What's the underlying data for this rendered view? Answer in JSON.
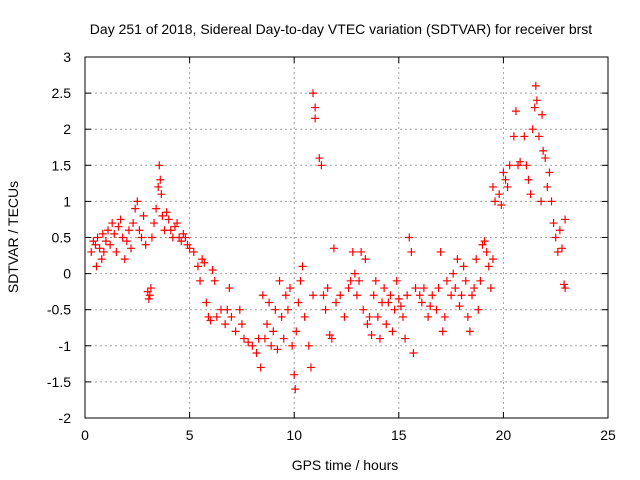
{
  "chart_data": {
    "type": "scatter",
    "title": "Day 251 of 2018, Sidereal Day-to-day VTEC variation (SDTVAR) for receiver brst",
    "xlabel": "GPS time / hours",
    "ylabel": "SDTVAR / TECUs",
    "xlim": [
      0,
      25
    ],
    "ylim": [
      -2,
      3
    ],
    "xticks": [
      0,
      5,
      10,
      15,
      20,
      25
    ],
    "yticks": [
      -2,
      -1.5,
      -1,
      -0.5,
      0,
      0.5,
      1,
      1.5,
      2,
      2.5,
      3
    ],
    "xtick_labels": [
      "0",
      "5",
      "10",
      "15",
      "20",
      "25"
    ],
    "ytick_labels": [
      "-2",
      "-1.5",
      "-1",
      "-0.5",
      "0",
      "0.5",
      "1",
      "1.5",
      "2",
      "2.5",
      "3"
    ],
    "grid": true,
    "marker": "+",
    "series": [
      {
        "name": "SDTVAR",
        "color": "#ff0000",
        "points": [
          [
            0.3,
            0.3
          ],
          [
            0.4,
            0.45
          ],
          [
            0.5,
            0.4
          ],
          [
            0.55,
            0.1
          ],
          [
            0.6,
            0.5
          ],
          [
            0.7,
            0.35
          ],
          [
            0.8,
            0.2
          ],
          [
            0.85,
            0.55
          ],
          [
            0.9,
            0.3
          ],
          [
            1.0,
            0.45
          ],
          [
            1.1,
            0.6
          ],
          [
            1.2,
            0.4
          ],
          [
            1.3,
            0.7
          ],
          [
            1.4,
            0.55
          ],
          [
            1.5,
            0.3
          ],
          [
            1.6,
            0.65
          ],
          [
            1.7,
            0.75
          ],
          [
            1.8,
            0.5
          ],
          [
            1.9,
            0.2
          ],
          [
            2.0,
            0.45
          ],
          [
            2.1,
            0.6
          ],
          [
            2.2,
            0.35
          ],
          [
            2.3,
            0.7
          ],
          [
            2.4,
            0.9
          ],
          [
            2.5,
            1.0
          ],
          [
            2.6,
            0.6
          ],
          [
            2.7,
            0.5
          ],
          [
            2.8,
            0.8
          ],
          [
            2.9,
            0.4
          ],
          [
            3.0,
            -0.25
          ],
          [
            3.05,
            -0.35
          ],
          [
            3.1,
            -0.3
          ],
          [
            3.15,
            -0.2
          ],
          [
            3.2,
            0.5
          ],
          [
            3.3,
            0.7
          ],
          [
            3.4,
            0.9
          ],
          [
            3.5,
            1.2
          ],
          [
            3.55,
            1.5
          ],
          [
            3.6,
            1.3
          ],
          [
            3.65,
            1.1
          ],
          [
            3.7,
            0.8
          ],
          [
            3.8,
            0.6
          ],
          [
            3.9,
            0.85
          ],
          [
            4.0,
            0.75
          ],
          [
            4.1,
            0.6
          ],
          [
            4.2,
            0.5
          ],
          [
            4.3,
            0.65
          ],
          [
            4.4,
            0.7
          ],
          [
            4.5,
            0.5
          ],
          [
            4.6,
            0.45
          ],
          [
            4.7,
            0.55
          ],
          [
            4.8,
            0.5
          ],
          [
            4.9,
            0.4
          ],
          [
            5.0,
            0.35
          ],
          [
            5.2,
            0.3
          ],
          [
            5.4,
            0.1
          ],
          [
            5.5,
            -0.1
          ],
          [
            5.6,
            0.2
          ],
          [
            5.7,
            0.15
          ],
          [
            5.8,
            -0.4
          ],
          [
            5.9,
            -0.6
          ],
          [
            6.0,
            -0.65
          ],
          [
            6.1,
            0.05
          ],
          [
            6.2,
            -0.1
          ],
          [
            6.3,
            -0.6
          ],
          [
            6.5,
            -0.5
          ],
          [
            6.7,
            -0.7
          ],
          [
            6.8,
            -0.5
          ],
          [
            6.9,
            -0.2
          ],
          [
            7.0,
            -0.6
          ],
          [
            7.2,
            -0.8
          ],
          [
            7.4,
            -0.5
          ],
          [
            7.5,
            -0.7
          ],
          [
            7.6,
            -0.9
          ],
          [
            7.8,
            -0.95
          ],
          [
            8.0,
            -1.0
          ],
          [
            8.2,
            -1.1
          ],
          [
            8.3,
            -0.9
          ],
          [
            8.4,
            -1.3
          ],
          [
            8.5,
            -0.3
          ],
          [
            8.6,
            -0.9
          ],
          [
            8.7,
            -0.7
          ],
          [
            8.8,
            -0.4
          ],
          [
            8.9,
            -1.0
          ],
          [
            9.0,
            -0.8
          ],
          [
            9.1,
            -0.5
          ],
          [
            9.2,
            -1.05
          ],
          [
            9.3,
            -0.1
          ],
          [
            9.4,
            -0.6
          ],
          [
            9.5,
            -0.9
          ],
          [
            9.6,
            -0.3
          ],
          [
            9.7,
            -0.5
          ],
          [
            9.8,
            -0.2
          ],
          [
            9.9,
            -1.0
          ],
          [
            10.0,
            -1.4
          ],
          [
            10.05,
            -1.6
          ],
          [
            10.1,
            -0.8
          ],
          [
            10.2,
            -0.4
          ],
          [
            10.3,
            -0.1
          ],
          [
            10.4,
            0.1
          ],
          [
            10.5,
            -0.6
          ],
          [
            10.7,
            -1.0
          ],
          [
            10.8,
            -1.3
          ],
          [
            10.9,
            -0.3
          ],
          [
            10.9,
            2.5
          ],
          [
            11.0,
            2.3
          ],
          [
            11.0,
            2.15
          ],
          [
            11.2,
            1.6
          ],
          [
            11.3,
            1.5
          ],
          [
            11.4,
            -0.3
          ],
          [
            11.5,
            -0.5
          ],
          [
            11.6,
            -0.2
          ],
          [
            11.7,
            -0.85
          ],
          [
            11.8,
            -0.9
          ],
          [
            11.9,
            0.35
          ],
          [
            12.0,
            -0.4
          ],
          [
            12.2,
            -0.3
          ],
          [
            12.4,
            -0.6
          ],
          [
            12.6,
            -0.2
          ],
          [
            12.7,
            -0.1
          ],
          [
            12.8,
            0.3
          ],
          [
            12.9,
            0.0
          ],
          [
            13.0,
            -0.3
          ],
          [
            13.1,
            -0.1
          ],
          [
            13.2,
            0.3
          ],
          [
            13.3,
            -0.5
          ],
          [
            13.4,
            0.2
          ],
          [
            13.5,
            -0.7
          ],
          [
            13.6,
            -0.6
          ],
          [
            13.7,
            -0.85
          ],
          [
            13.8,
            -0.3
          ],
          [
            13.9,
            -0.1
          ],
          [
            14.0,
            -0.6
          ],
          [
            14.1,
            -0.9
          ],
          [
            14.2,
            -0.4
          ],
          [
            14.3,
            -0.2
          ],
          [
            14.4,
            -0.7
          ],
          [
            14.5,
            -0.4
          ],
          [
            14.6,
            -0.3
          ],
          [
            14.7,
            -0.8
          ],
          [
            14.8,
            -0.5
          ],
          [
            14.9,
            -0.1
          ],
          [
            15.0,
            -0.35
          ],
          [
            15.1,
            -0.45
          ],
          [
            15.2,
            -0.6
          ],
          [
            15.3,
            -0.9
          ],
          [
            15.4,
            -0.3
          ],
          [
            15.5,
            0.5
          ],
          [
            15.6,
            0.3
          ],
          [
            15.7,
            -1.1
          ],
          [
            15.8,
            -0.2
          ],
          [
            16.0,
            -0.3
          ],
          [
            16.1,
            -0.4
          ],
          [
            16.2,
            -0.2
          ],
          [
            16.4,
            -0.6
          ],
          [
            16.5,
            -0.45
          ],
          [
            16.6,
            -0.3
          ],
          [
            16.8,
            -0.5
          ],
          [
            16.9,
            -0.2
          ],
          [
            17.0,
            0.3
          ],
          [
            17.1,
            -0.8
          ],
          [
            17.2,
            -0.6
          ],
          [
            17.3,
            -0.1
          ],
          [
            17.5,
            -0.3
          ],
          [
            17.6,
            0.0
          ],
          [
            17.7,
            -0.2
          ],
          [
            17.8,
            0.2
          ],
          [
            17.9,
            -0.45
          ],
          [
            18.0,
            -0.3
          ],
          [
            18.1,
            0.1
          ],
          [
            18.2,
            -0.1
          ],
          [
            18.3,
            -0.6
          ],
          [
            18.4,
            -0.8
          ],
          [
            18.5,
            -0.3
          ],
          [
            18.6,
            -0.2
          ],
          [
            18.7,
            0.2
          ],
          [
            18.8,
            -0.5
          ],
          [
            18.9,
            -0.1
          ],
          [
            19.0,
            0.4
          ],
          [
            19.1,
            0.45
          ],
          [
            19.2,
            0.3
          ],
          [
            19.3,
            0.1
          ],
          [
            19.4,
            -0.2
          ],
          [
            19.5,
            0.2
          ],
          [
            19.5,
            1.2
          ],
          [
            19.6,
            1.0
          ],
          [
            19.8,
            1.1
          ],
          [
            19.9,
            0.95
          ],
          [
            20.0,
            1.4
          ],
          [
            20.1,
            1.3
          ],
          [
            20.2,
            1.2
          ],
          [
            20.3,
            1.5
          ],
          [
            20.5,
            1.9
          ],
          [
            20.6,
            2.25
          ],
          [
            20.7,
            1.5
          ],
          [
            20.8,
            1.55
          ],
          [
            21.0,
            1.9
          ],
          [
            21.1,
            1.5
          ],
          [
            21.2,
            1.3
          ],
          [
            21.3,
            1.1
          ],
          [
            21.4,
            2.0
          ],
          [
            21.5,
            2.3
          ],
          [
            21.55,
            2.6
          ],
          [
            21.6,
            2.4
          ],
          [
            21.7,
            1.9
          ],
          [
            21.8,
            1.0
          ],
          [
            21.85,
            2.2
          ],
          [
            21.9,
            1.7
          ],
          [
            22.0,
            1.6
          ],
          [
            22.1,
            1.2
          ],
          [
            22.2,
            1.4
          ],
          [
            22.3,
            1.0
          ],
          [
            22.4,
            0.7
          ],
          [
            22.5,
            0.5
          ],
          [
            22.6,
            0.3
          ],
          [
            22.7,
            0.6
          ],
          [
            22.8,
            0.35
          ],
          [
            22.9,
            -0.15
          ],
          [
            22.95,
            -0.2
          ],
          [
            22.95,
            0.75
          ]
        ]
      }
    ]
  }
}
